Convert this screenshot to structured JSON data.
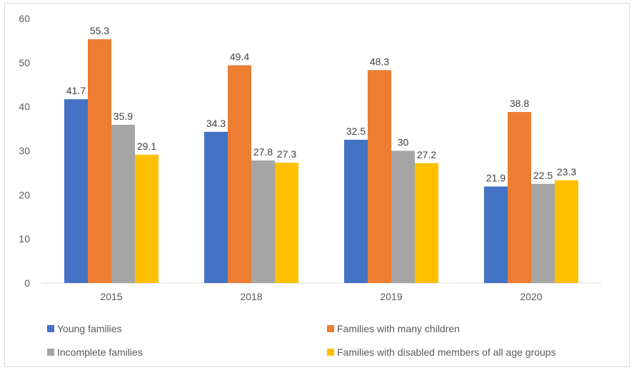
{
  "chart_data": {
    "type": "bar",
    "title": "",
    "xlabel": "",
    "ylabel": "",
    "categories": [
      "2015",
      "2018",
      "2019",
      "2020"
    ],
    "ylim": [
      0,
      60
    ],
    "yticks": [
      0,
      10,
      20,
      30,
      40,
      50,
      60
    ],
    "grid": false,
    "legend_position": "bottom",
    "series": [
      {
        "name": "Young families",
        "color": "#4472C4",
        "values": [
          41.7,
          34.3,
          32.5,
          21.9
        ]
      },
      {
        "name": "Families with many children",
        "color": "#ED7D31",
        "values": [
          55.3,
          49.4,
          48.3,
          38.8
        ]
      },
      {
        "name": "Incomplete families",
        "color": "#A5A5A5",
        "values": [
          35.9,
          27.8,
          30,
          22.5
        ]
      },
      {
        "name": "Families with disabled members of all age groups",
        "color": "#FFC000",
        "values": [
          29.1,
          27.3,
          27.2,
          23.3
        ]
      }
    ]
  }
}
